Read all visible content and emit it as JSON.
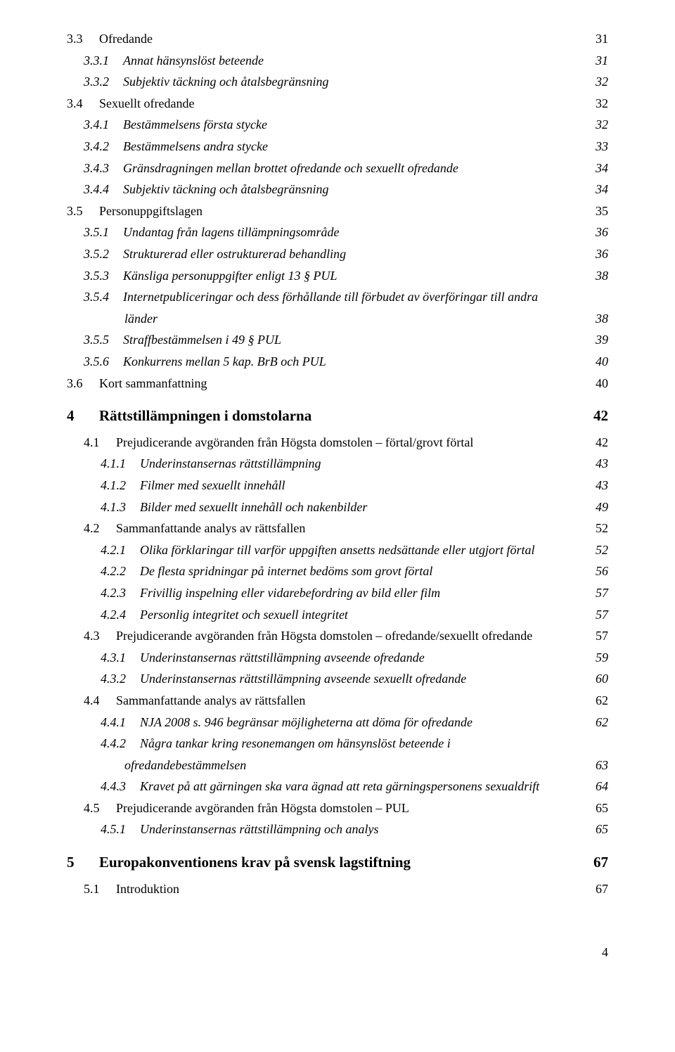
{
  "entries": [
    {
      "level": "level-1",
      "num": "3.3",
      "text": "Ofredande",
      "page": "31"
    },
    {
      "level": "level-2",
      "num": "3.3.1",
      "text": "Annat hänsynslöst beteende",
      "page": "31"
    },
    {
      "level": "level-2",
      "num": "3.3.2",
      "text": "Subjektiv täckning och åtalsbegränsning",
      "page": "32"
    },
    {
      "level": "level-1",
      "num": "3.4",
      "text": "Sexuellt ofredande",
      "page": "32"
    },
    {
      "level": "level-2",
      "num": "3.4.1",
      "text": "Bestämmelsens första stycke",
      "page": "32"
    },
    {
      "level": "level-2",
      "num": "3.4.2",
      "text": "Bestämmelsens andra stycke",
      "page": "33"
    },
    {
      "level": "level-2",
      "num": "3.4.3",
      "text": "Gränsdragningen mellan brottet ofredande och sexuellt ofredande",
      "page": "34"
    },
    {
      "level": "level-2",
      "num": "3.4.4",
      "text": "Subjektiv täckning och åtalsbegränsning",
      "page": "34"
    },
    {
      "level": "level-1",
      "num": "3.5",
      "text": "Personuppgiftslagen",
      "page": "35"
    },
    {
      "level": "level-2",
      "num": "3.5.1",
      "text": "Undantag från lagens tillämpningsområde",
      "page": "36"
    },
    {
      "level": "level-2",
      "num": "3.5.2",
      "text": "Strukturerad eller ostrukturerad behandling",
      "page": "36"
    },
    {
      "level": "level-2",
      "num": "3.5.3",
      "text": "Känsliga personuppgifter enligt 13 § PUL",
      "page": "38"
    },
    {
      "level": "level-2",
      "num": "3.5.4",
      "text": "Internetpubliceringar och dess förhållande till förbudet av överföringar till andra",
      "page": "",
      "multi": true
    },
    {
      "level": "cont",
      "num": "",
      "text": "länder",
      "page": "38"
    },
    {
      "level": "level-2",
      "num": "3.5.5",
      "text": "Straffbestämmelsen i 49 § PUL",
      "page": "39"
    },
    {
      "level": "level-2",
      "num": "3.5.6",
      "text": "Konkurrens mellan 5 kap. BrB och PUL",
      "page": "40"
    },
    {
      "level": "level-1",
      "num": "3.6",
      "text": "Kort sammanfattning",
      "page": "40"
    },
    {
      "level": "heading",
      "num": "4",
      "text": "Rättstillämpningen i domstolarna",
      "page": "42"
    },
    {
      "level": "sub-1",
      "num": "4.1",
      "text": "Prejudicerande avgöranden från Högsta domstolen – förtal/grovt förtal",
      "page": "42"
    },
    {
      "level": "sub-2",
      "num": "4.1.1",
      "text": "Underinstansernas rättstillämpning",
      "page": "43"
    },
    {
      "level": "sub-2",
      "num": "4.1.2",
      "text": "Filmer med sexuellt innehåll",
      "page": "43"
    },
    {
      "level": "sub-2",
      "num": "4.1.3",
      "text": "Bilder med sexuellt innehåll och nakenbilder",
      "page": "49"
    },
    {
      "level": "sub-1",
      "num": "4.2",
      "text": "Sammanfattande analys av rättsfallen",
      "page": "52"
    },
    {
      "level": "sub-2",
      "num": "4.2.1",
      "text": "Olika förklaringar till varför uppgiften ansetts nedsättande eller utgjort förtal",
      "page": "52"
    },
    {
      "level": "sub-2",
      "num": "4.2.2",
      "text": "De flesta spridningar på internet bedöms som grovt förtal",
      "page": "56"
    },
    {
      "level": "sub-2",
      "num": "4.2.3",
      "text": "Frivillig inspelning eller vidarebefordring av bild eller film",
      "page": "57"
    },
    {
      "level": "sub-2",
      "num": "4.2.4",
      "text": "Personlig integritet och sexuell integritet",
      "page": "57"
    },
    {
      "level": "sub-1",
      "num": "4.3",
      "text": "Prejudicerande avgöranden från Högsta domstolen – ofredande/sexuellt ofredande",
      "page": "57"
    },
    {
      "level": "sub-2",
      "num": "4.3.1",
      "text": "Underinstansernas rättstillämpning avseende ofredande",
      "page": "59"
    },
    {
      "level": "sub-2",
      "num": "4.3.2",
      "text": "Underinstansernas rättstillämpning avseende sexuellt ofredande",
      "page": "60"
    },
    {
      "level": "sub-1",
      "num": "4.4",
      "text": "Sammanfattande analys av rättsfallen",
      "page": "62"
    },
    {
      "level": "sub-2",
      "num": "4.4.1",
      "text": "NJA 2008 s. 946 begränsar möjligheterna att döma för ofredande",
      "page": "62"
    },
    {
      "level": "sub-2",
      "num": "4.4.2",
      "text": "Några tankar kring resonemangen om hänsynslöst beteende i",
      "page": "",
      "multi": true
    },
    {
      "level": "cont",
      "num": "",
      "text": "ofredandebestämmelsen",
      "page": "63"
    },
    {
      "level": "sub-2",
      "num": "4.4.3",
      "text": "Kravet på att gärningen ska vara ägnad att reta gärningspersonens sexualdrift",
      "page": "64"
    },
    {
      "level": "sub-1",
      "num": "4.5",
      "text": "Prejudicerande avgöranden från Högsta domstolen – PUL",
      "page": "65"
    },
    {
      "level": "sub-2",
      "num": "4.5.1",
      "text": "Underinstansernas rättstillämpning och analys",
      "page": "65"
    },
    {
      "level": "heading",
      "num": "5",
      "text": "Europakonventionens krav på svensk lagstiftning",
      "page": "67"
    },
    {
      "level": "sub-1",
      "num": "5.1",
      "text": "Introduktion",
      "page": "67"
    }
  ],
  "footer_page": "4"
}
